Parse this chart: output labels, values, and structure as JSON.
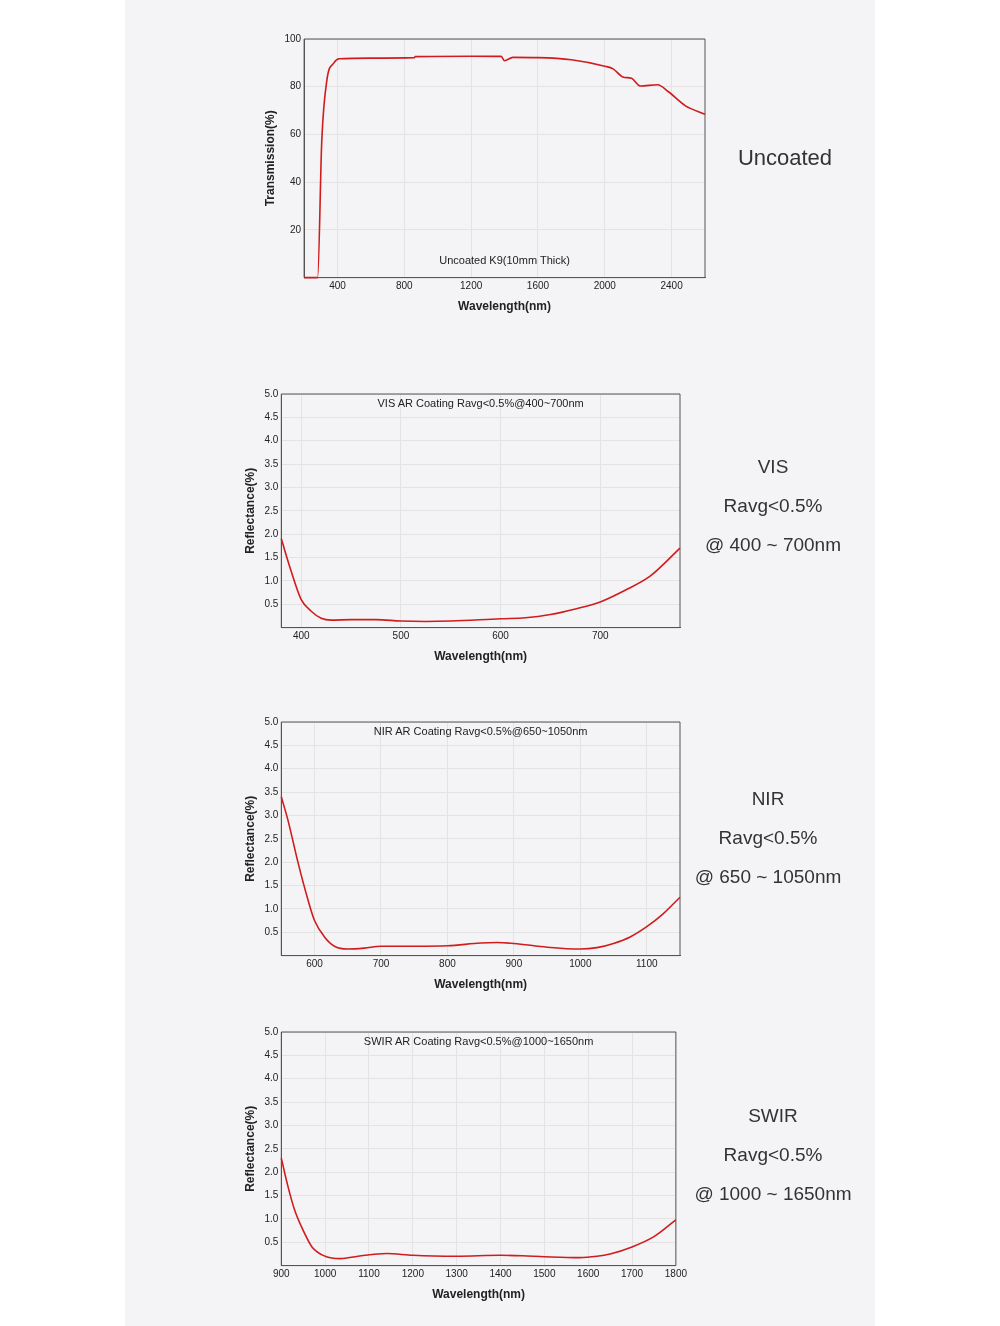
{
  "chart_data": [
    {
      "type": "line",
      "xlabel": "Wavelength(nm)",
      "ylabel": "Transmission(%)",
      "xlim": [
        200,
        2600
      ],
      "xticks": [
        400,
        800,
        1200,
        1600,
        2000,
        2400
      ],
      "ylim": [
        0,
        100
      ],
      "yticks": [
        20,
        40,
        60,
        80,
        100
      ],
      "grid": true,
      "legend": false,
      "annotations": [
        "Uncoated K9(10mm Thick)",
        "Uncoated"
      ],
      "series": [
        {
          "color": "#d01c1c",
          "x": [
            200,
            281,
            306,
            337,
            379,
            410,
            600,
            860,
            865,
            1200,
            1380,
            1400,
            1450,
            1600,
            1800,
            2000,
            2050,
            2108,
            2160,
            2212,
            2316,
            2379,
            2483,
            2600
          ],
          "values": [
            0,
            0,
            57.6,
            83,
            90,
            91.7,
            92,
            92.2,
            92.6,
            92.8,
            92.7,
            90.9,
            92.3,
            92.2,
            91.3,
            88.6,
            87.5,
            84.1,
            83.5,
            80.3,
            80.8,
            78,
            72,
            68.5
          ]
        }
      ]
    },
    {
      "type": "line",
      "xlabel": "Wavelength(nm)",
      "ylabel": "Reflectance(%)",
      "xlim": [
        380,
        780
      ],
      "xticks": [
        400,
        500,
        600,
        700
      ],
      "ylim": [
        0,
        5
      ],
      "yticks": [
        {
          "value": 0.5,
          "label": "0.5"
        },
        {
          "value": 1,
          "label": "1.0"
        },
        {
          "value": 1.5,
          "label": "1.5"
        },
        {
          "value": 2,
          "label": "2.0"
        },
        {
          "value": 2.5,
          "label": "2.5"
        },
        {
          "value": 3,
          "label": "3.0"
        },
        {
          "value": 3.5,
          "label": "3.5"
        },
        {
          "value": 4,
          "label": "4.0"
        },
        {
          "value": 4.5,
          "label": "4.5"
        },
        {
          "value": 5,
          "label": "5.0"
        }
      ],
      "grid": true,
      "legend": false,
      "annotations": [
        "VIS AR Coating Ravg<0.5%@400~700nm",
        "VIS",
        "Ravg<0.5%",
        "@ 400 ~ 700nm"
      ],
      "series": [
        {
          "color": "#d01c1c",
          "x": [
            380,
            390,
            400,
            410,
            420,
            430,
            450,
            475,
            500,
            525,
            550,
            600,
            625,
            650,
            675,
            700,
            725,
            750,
            780
          ],
          "values": [
            1.9,
            1.2,
            0.6,
            0.35,
            0.2,
            0.16,
            0.17,
            0.17,
            0.14,
            0.13,
            0.14,
            0.19,
            0.21,
            0.28,
            0.4,
            0.55,
            0.8,
            1.1,
            1.7
          ]
        }
      ]
    },
    {
      "type": "line",
      "xlabel": "Wavelength(nm)",
      "ylabel": "Reflectance(%)",
      "xlim": [
        550,
        1150
      ],
      "xticks": [
        600,
        700,
        800,
        900,
        1000,
        1100
      ],
      "ylim": [
        0,
        5
      ],
      "yticks": [
        {
          "value": 0.5,
          "label": "0.5"
        },
        {
          "value": 1,
          "label": "1.0"
        },
        {
          "value": 1.5,
          "label": "1.5"
        },
        {
          "value": 2,
          "label": "2.0"
        },
        {
          "value": 2.5,
          "label": "2.5"
        },
        {
          "value": 3,
          "label": "3.0"
        },
        {
          "value": 3.5,
          "label": "3.5"
        },
        {
          "value": 4,
          "label": "4.0"
        },
        {
          "value": 4.5,
          "label": "4.5"
        },
        {
          "value": 5,
          "label": "5.0"
        }
      ],
      "grid": true,
      "legend": false,
      "annotations": [
        "NIR AR Coating Ravg<0.5%@650~1050nm",
        "NIR",
        "Ravg<0.5%",
        "@ 650 ~ 1050nm"
      ],
      "series": [
        {
          "color": "#d01c1c",
          "x": [
            550,
            560,
            575,
            590,
            600,
            615,
            630,
            650,
            675,
            700,
            750,
            800,
            850,
            875,
            900,
            950,
            1000,
            1025,
            1050,
            1075,
            1100,
            1125,
            1150
          ],
          "values": [
            3.4,
            2.9,
            2.0,
            1.2,
            0.75,
            0.4,
            0.2,
            0.14,
            0.16,
            0.2,
            0.2,
            0.21,
            0.27,
            0.28,
            0.26,
            0.18,
            0.14,
            0.17,
            0.26,
            0.4,
            0.62,
            0.9,
            1.25
          ]
        }
      ]
    },
    {
      "type": "line",
      "xlabel": "Wavelength(nm)",
      "ylabel": "Reflectance(%)",
      "xlim": [
        900,
        1800
      ],
      "xticks": [
        900,
        1000,
        1100,
        1200,
        1300,
        1400,
        1500,
        1600,
        1700,
        1800
      ],
      "ylim": [
        0,
        5
      ],
      "yticks": [
        {
          "value": 0.5,
          "label": "0.5"
        },
        {
          "value": 1,
          "label": "1.0"
        },
        {
          "value": 1.5,
          "label": "1.5"
        },
        {
          "value": 2,
          "label": "2.0"
        },
        {
          "value": 2.5,
          "label": "2.5"
        },
        {
          "value": 3,
          "label": "3.0"
        },
        {
          "value": 3.5,
          "label": "3.5"
        },
        {
          "value": 4,
          "label": "4.0"
        },
        {
          "value": 4.5,
          "label": "4.5"
        },
        {
          "value": 5,
          "label": "5.0"
        }
      ],
      "grid": true,
      "legend": false,
      "annotations": [
        "SWIR AR Coating Ravg<0.5%@1000~1650nm",
        "SWIR",
        "Ravg<0.5%",
        "@ 1000 ~ 1650nm"
      ],
      "series": [
        {
          "color": "#d01c1c",
          "x": [
            900,
            915,
            930,
            950,
            970,
            1000,
            1035,
            1075,
            1140,
            1200,
            1300,
            1400,
            1450,
            1500,
            1580,
            1620,
            1650,
            1700,
            1750,
            1800
          ],
          "values": [
            2.3,
            1.7,
            1.2,
            0.75,
            0.4,
            0.2,
            0.15,
            0.2,
            0.26,
            0.22,
            0.2,
            0.22,
            0.21,
            0.19,
            0.17,
            0.2,
            0.25,
            0.4,
            0.62,
            0.98
          ]
        }
      ]
    }
  ]
}
